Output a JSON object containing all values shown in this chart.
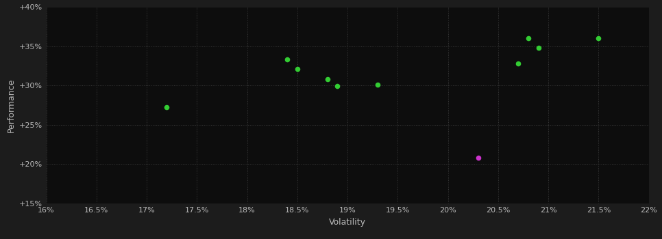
{
  "background_color": "#1c1c1c",
  "plot_bg_color": "#0d0d0d",
  "grid_color": "#3a3a3a",
  "text_color": "#bbbbbb",
  "xlabel": "Volatility",
  "ylabel": "Performance",
  "xlim": [
    0.16,
    0.22
  ],
  "ylim": [
    0.15,
    0.4
  ],
  "xticks": [
    0.16,
    0.165,
    0.17,
    0.175,
    0.18,
    0.185,
    0.19,
    0.195,
    0.2,
    0.205,
    0.21,
    0.215,
    0.22
  ],
  "yticks": [
    0.15,
    0.2,
    0.25,
    0.3,
    0.35,
    0.4
  ],
  "green_points": [
    [
      0.172,
      0.272
    ],
    [
      0.184,
      0.333
    ],
    [
      0.185,
      0.321
    ],
    [
      0.188,
      0.308
    ],
    [
      0.189,
      0.299
    ],
    [
      0.193,
      0.301
    ],
    [
      0.207,
      0.328
    ],
    [
      0.208,
      0.36
    ],
    [
      0.209,
      0.348
    ],
    [
      0.215,
      0.36
    ]
  ],
  "magenta_points": [
    [
      0.203,
      0.208
    ]
  ],
  "green_color": "#33cc33",
  "magenta_color": "#cc33cc",
  "marker_size": 30
}
